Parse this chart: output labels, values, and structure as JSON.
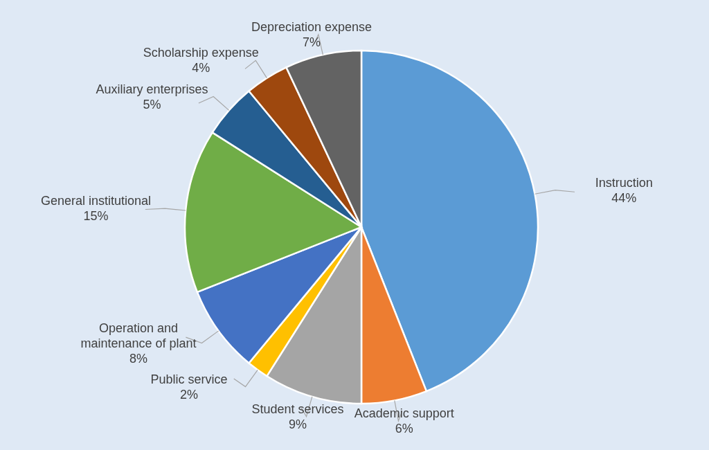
{
  "chart_data": {
    "type": "pie",
    "categories": [
      "Instruction",
      "Academic support",
      "Student services",
      "Public service",
      "Operation and maintenance of plant",
      "General institutional",
      "Auxiliary enterprises",
      "Scholarship expense",
      "Depreciation expense"
    ],
    "values": [
      44,
      6,
      9,
      2,
      8,
      15,
      5,
      4,
      7
    ],
    "value_labels": [
      "44%",
      "6%",
      "9%",
      "2%",
      "8%",
      "15%",
      "5%",
      "4%",
      "7%"
    ],
    "colors": [
      "#5b9bd5",
      "#ed7d31",
      "#a5a5a5",
      "#ffc000",
      "#4472c4",
      "#70ad47",
      "#255e91",
      "#9e480e",
      "#636363"
    ]
  }
}
